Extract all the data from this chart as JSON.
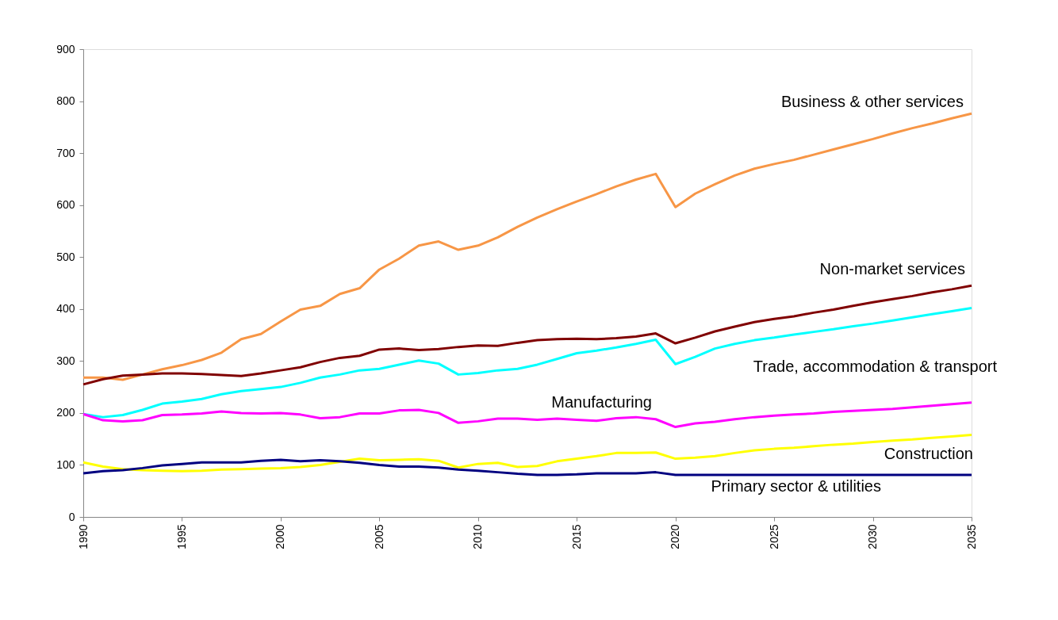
{
  "chart_data": {
    "type": "line",
    "x": [
      1990,
      1991,
      1992,
      1993,
      1994,
      1995,
      1996,
      1997,
      1998,
      1999,
      2000,
      2001,
      2002,
      2003,
      2004,
      2005,
      2006,
      2007,
      2008,
      2009,
      2010,
      2011,
      2012,
      2013,
      2014,
      2015,
      2016,
      2017,
      2018,
      2019,
      2020,
      2021,
      2022,
      2023,
      2024,
      2025,
      2026,
      2027,
      2028,
      2029,
      2030,
      2031,
      2032,
      2033,
      2034,
      2035
    ],
    "xlim": [
      1990,
      2035
    ],
    "xticks": [
      1990,
      1995,
      2000,
      2005,
      2010,
      2015,
      2020,
      2025,
      2030,
      2035
    ],
    "ylim": [
      0,
      900
    ],
    "yticks": [
      0,
      100,
      200,
      300,
      400,
      500,
      600,
      700,
      800,
      900
    ],
    "grid": false,
    "legend": false,
    "marker": "none",
    "line_style": "solid",
    "series": [
      {
        "name": "Business & other services",
        "color": "#f79646",
        "values": [
          268,
          268,
          264,
          274,
          284,
          292,
          302,
          316,
          342,
          352,
          376,
          399,
          406,
          429,
          440,
          476,
          497,
          522,
          530,
          514,
          522,
          538,
          558,
          576,
          592,
          607,
          621,
          636,
          649,
          660,
          596,
          622,
          640,
          657,
          670,
          679,
          687,
          697,
          707,
          717,
          727,
          738,
          748,
          757,
          767,
          776
        ]
      },
      {
        "name": "Non-market services",
        "color": "#800000",
        "values": [
          255,
          265,
          272,
          274,
          276,
          276,
          275,
          273,
          271,
          276,
          282,
          288,
          298,
          306,
          310,
          322,
          324,
          321,
          323,
          327,
          330,
          329,
          335,
          340,
          342,
          343,
          342,
          344,
          347,
          353,
          334,
          345,
          357,
          366,
          375,
          381,
          386,
          393,
          399,
          406,
          413,
          419,
          425,
          432,
          438,
          445
        ]
      },
      {
        "name": "Trade, accommodation & transport",
        "color": "#00ffff",
        "values": [
          198,
          192,
          196,
          206,
          218,
          222,
          227,
          236,
          242,
          246,
          250,
          258,
          268,
          274,
          282,
          285,
          293,
          301,
          295,
          274,
          277,
          282,
          285,
          293,
          304,
          315,
          320,
          326,
          333,
          341,
          294,
          308,
          324,
          333,
          340,
          345,
          351,
          356,
          361,
          367,
          372,
          378,
          384,
          390,
          396,
          402
        ]
      },
      {
        "name": "Manufacturing",
        "color": "#ff00ff",
        "values": [
          198,
          186,
          184,
          186,
          196,
          197,
          199,
          203,
          200,
          199,
          200,
          197,
          190,
          192,
          199,
          199,
          205,
          206,
          200,
          181,
          184,
          189,
          189,
          187,
          189,
          187,
          185,
          190,
          192,
          188,
          173,
          180,
          183,
          188,
          192,
          195,
          197,
          199,
          202,
          204,
          206,
          208,
          211,
          214,
          217,
          220
        ]
      },
      {
        "name": "Construction",
        "color": "#ffff00",
        "values": [
          105,
          97,
          92,
          90,
          89,
          88,
          89,
          91,
          92,
          93,
          94,
          96,
          100,
          106,
          112,
          109,
          110,
          111,
          108,
          95,
          102,
          104,
          96,
          98,
          107,
          112,
          117,
          123,
          123,
          124,
          112,
          114,
          117,
          123,
          128,
          131,
          133,
          136,
          139,
          141,
          144,
          147,
          149,
          152,
          155,
          158
        ]
      },
      {
        "name": "Primary sector & utilities",
        "color": "#000080",
        "values": [
          84,
          88,
          90,
          94,
          99,
          102,
          105,
          105,
          105,
          108,
          110,
          107,
          109,
          107,
          104,
          100,
          97,
          97,
          95,
          91,
          89,
          86,
          83,
          81,
          81,
          82,
          84,
          84,
          84,
          86,
          81,
          81,
          81,
          81,
          81,
          81,
          81,
          81,
          81,
          81,
          81,
          81,
          81,
          81,
          81,
          81
        ]
      }
    ]
  }
}
